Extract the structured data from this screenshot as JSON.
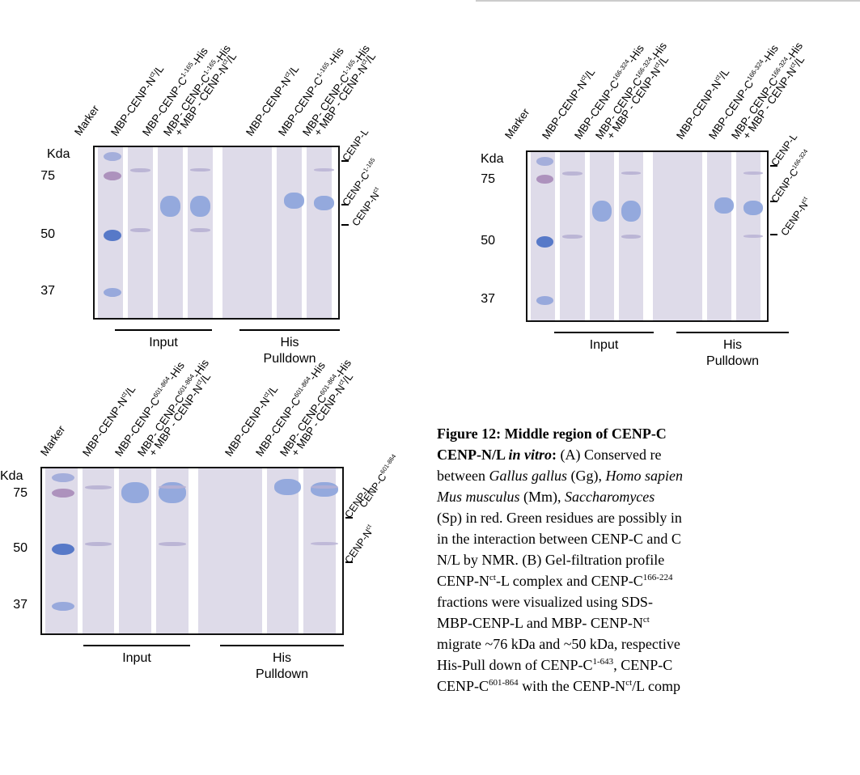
{
  "figure": {
    "kda_label": "Kda",
    "panels": [
      {
        "id": "top-left",
        "lane_labels": [
          "Marker",
          "MBP-CENP-N^ct/L",
          "MBP-CENP-C^1-165-His",
          "MBP- CENP-C^1-165-His",
          "+ MBP - CENP-N^ct/L",
          "MBP-CENP-N^ct/L",
          "MBP-CENP-C^1-165-His",
          "MBP- CENP-C^1-165-His",
          "+ MBP - CENP-N^ct/L"
        ],
        "mw_markers": [
          "75",
          "50",
          "37"
        ],
        "right_labels": [
          "CENP-L",
          "CENP-C^1-165",
          "CENP-N^ct"
        ],
        "input_label": "Input",
        "pulldown_label_1": "His",
        "pulldown_label_2": "Pulldown"
      },
      {
        "id": "top-right",
        "lane_labels": [
          "Marker",
          "MBP-CENP-N^ct/L",
          "MBP-CENP-C^166-324-His",
          "MBP- CENP-C^166-324-His",
          "+ MBP - CENP-N^ct/L",
          "MBP-CENP-N^ct/L",
          "MBP-CENP-C^166-324-His",
          "MBP- CENP-C^166-324-His",
          "+ MBP - CENP-N^ct/L"
        ],
        "mw_markers": [
          "75",
          "50",
          "37"
        ],
        "right_labels": [
          "CENP-L",
          "CENP-C^166-324",
          "CENP-N^ct"
        ],
        "input_label": "Input",
        "pulldown_label_1": "His",
        "pulldown_label_2": "Pulldown"
      },
      {
        "id": "bottom-left",
        "lane_labels": [
          "Marker",
          "MBP-CENP-N^ct/L",
          "MBP-CENP-C^601-864-His",
          "MBP- CENP-C^601-864-His",
          "+ MBP - CENP-N^ct/L",
          "MBP-CENP-N^ct/L",
          "MBP-CENP-C^601-864-His",
          "MBP- CENP-C^601-864-His",
          "+ MBP - CENP-N^ct/L"
        ],
        "mw_markers": [
          "75",
          "50",
          "37"
        ],
        "right_labels": [
          "CENP-L",
          "CENP-C^601-864",
          "CENP-N^ct"
        ],
        "input_label": "Input",
        "pulldown_label_1": "His",
        "pulldown_label_2": "Pulldown"
      }
    ]
  },
  "caption": {
    "lines": [
      "Figure 12: Middle region of CENP-C",
      "CENP-N/L in vitro: (A) Conserved re",
      "between Gallus gallus (Gg), Homo sapien",
      "Mus musculus (Mm), Saccharomyces",
      "(Sp) in red. Green residues are possibly in",
      "in the interaction between CENP-C and C",
      "N/L by NMR. (B) Gel-filtration profile",
      "CENP-N^ct-L complex and CENP-C^166-224",
      "fractions were visualized using SDS-",
      "MBP-CENP-L and MBP- CENP-N^ct",
      "migrate ~76 kDa and ~50 kDa, respective",
      "His-Pull down of CENP-C^1-643, CENP-C",
      "CENP-C^601-864 with the CENP-N^ct/L comp"
    ]
  }
}
